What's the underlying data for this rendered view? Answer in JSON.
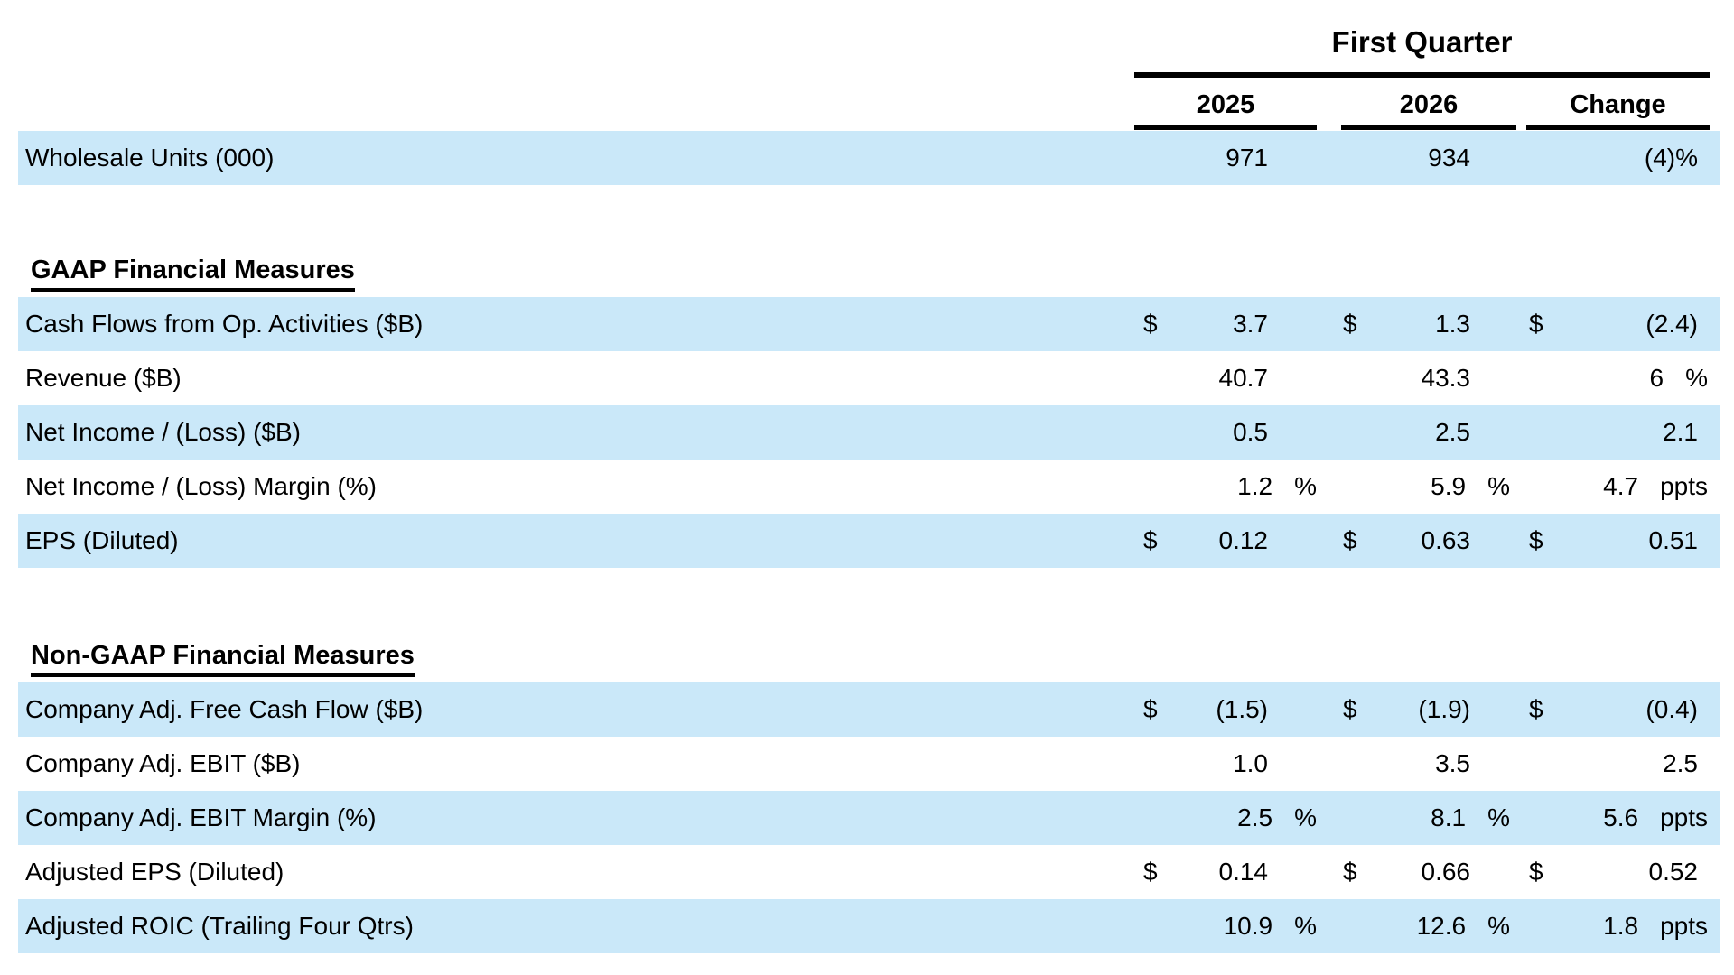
{
  "page": {
    "background_color": "#ffffff",
    "row_stripe_color": "#cae8f9",
    "text_color": "#000000"
  },
  "header": {
    "group_title": "First Quarter",
    "col_2025": "2025",
    "col_2026": "2026",
    "col_change": "Change"
  },
  "sections": [
    {
      "heading": "",
      "rows": [
        {
          "label": "Wholesale Units (000)",
          "v1": "971",
          "v2": "934",
          "v3": "(4)%"
        }
      ]
    },
    {
      "heading": "GAAP Financial Measures",
      "rows": [
        {
          "label": "Cash Flows from Op. Activities ($B)",
          "d1": "$",
          "v1": "3.7",
          "d2": "$",
          "v2": "1.3",
          "d3": "$",
          "v3": "(2.4)"
        },
        {
          "label": "Revenue ($B)",
          "v1": "40.7",
          "v2": "43.3",
          "v3": "6",
          "s3": "%"
        },
        {
          "label": "Net Income / (Loss) ($B)",
          "v1": "0.5",
          "v2": "2.5",
          "v3": "2.1"
        },
        {
          "label": "Net Income / (Loss) Margin (%)",
          "v1": "1.2",
          "s1": "%",
          "v2": "5.9",
          "s2": "%",
          "v3": "4.7",
          "s3": "ppts"
        },
        {
          "label": "EPS (Diluted)",
          "d1": "$",
          "v1": "0.12",
          "d2": "$",
          "v2": "0.63",
          "d3": "$",
          "v3": "0.51"
        }
      ]
    },
    {
      "heading": "Non-GAAP Financial Measures",
      "rows": [
        {
          "label": "Company Adj. Free Cash Flow ($B)",
          "d1": "$",
          "v1": "(1.5)",
          "d2": "$",
          "v2": "(1.9)",
          "d3": "$",
          "v3": "(0.4)"
        },
        {
          "label": "Company Adj. EBIT ($B)",
          "v1": "1.0",
          "v2": "3.5",
          "v3": "2.5"
        },
        {
          "label": "Company Adj. EBIT Margin (%)",
          "v1": "2.5",
          "s1": "%",
          "v2": "8.1",
          "s2": "%",
          "v3": "5.6",
          "s3": "ppts"
        },
        {
          "label": "Adjusted EPS (Diluted)",
          "d1": "$",
          "v1": "0.14",
          "d2": "$",
          "v2": "0.66",
          "d3": "$",
          "v3": "0.52"
        },
        {
          "label": "Adjusted ROIC (Trailing Four Qtrs)",
          "v1": "10.9",
          "s1": "%",
          "v2": "12.6",
          "s2": "%",
          "v3": "1.8",
          "s3": "ppts"
        }
      ]
    }
  ]
}
